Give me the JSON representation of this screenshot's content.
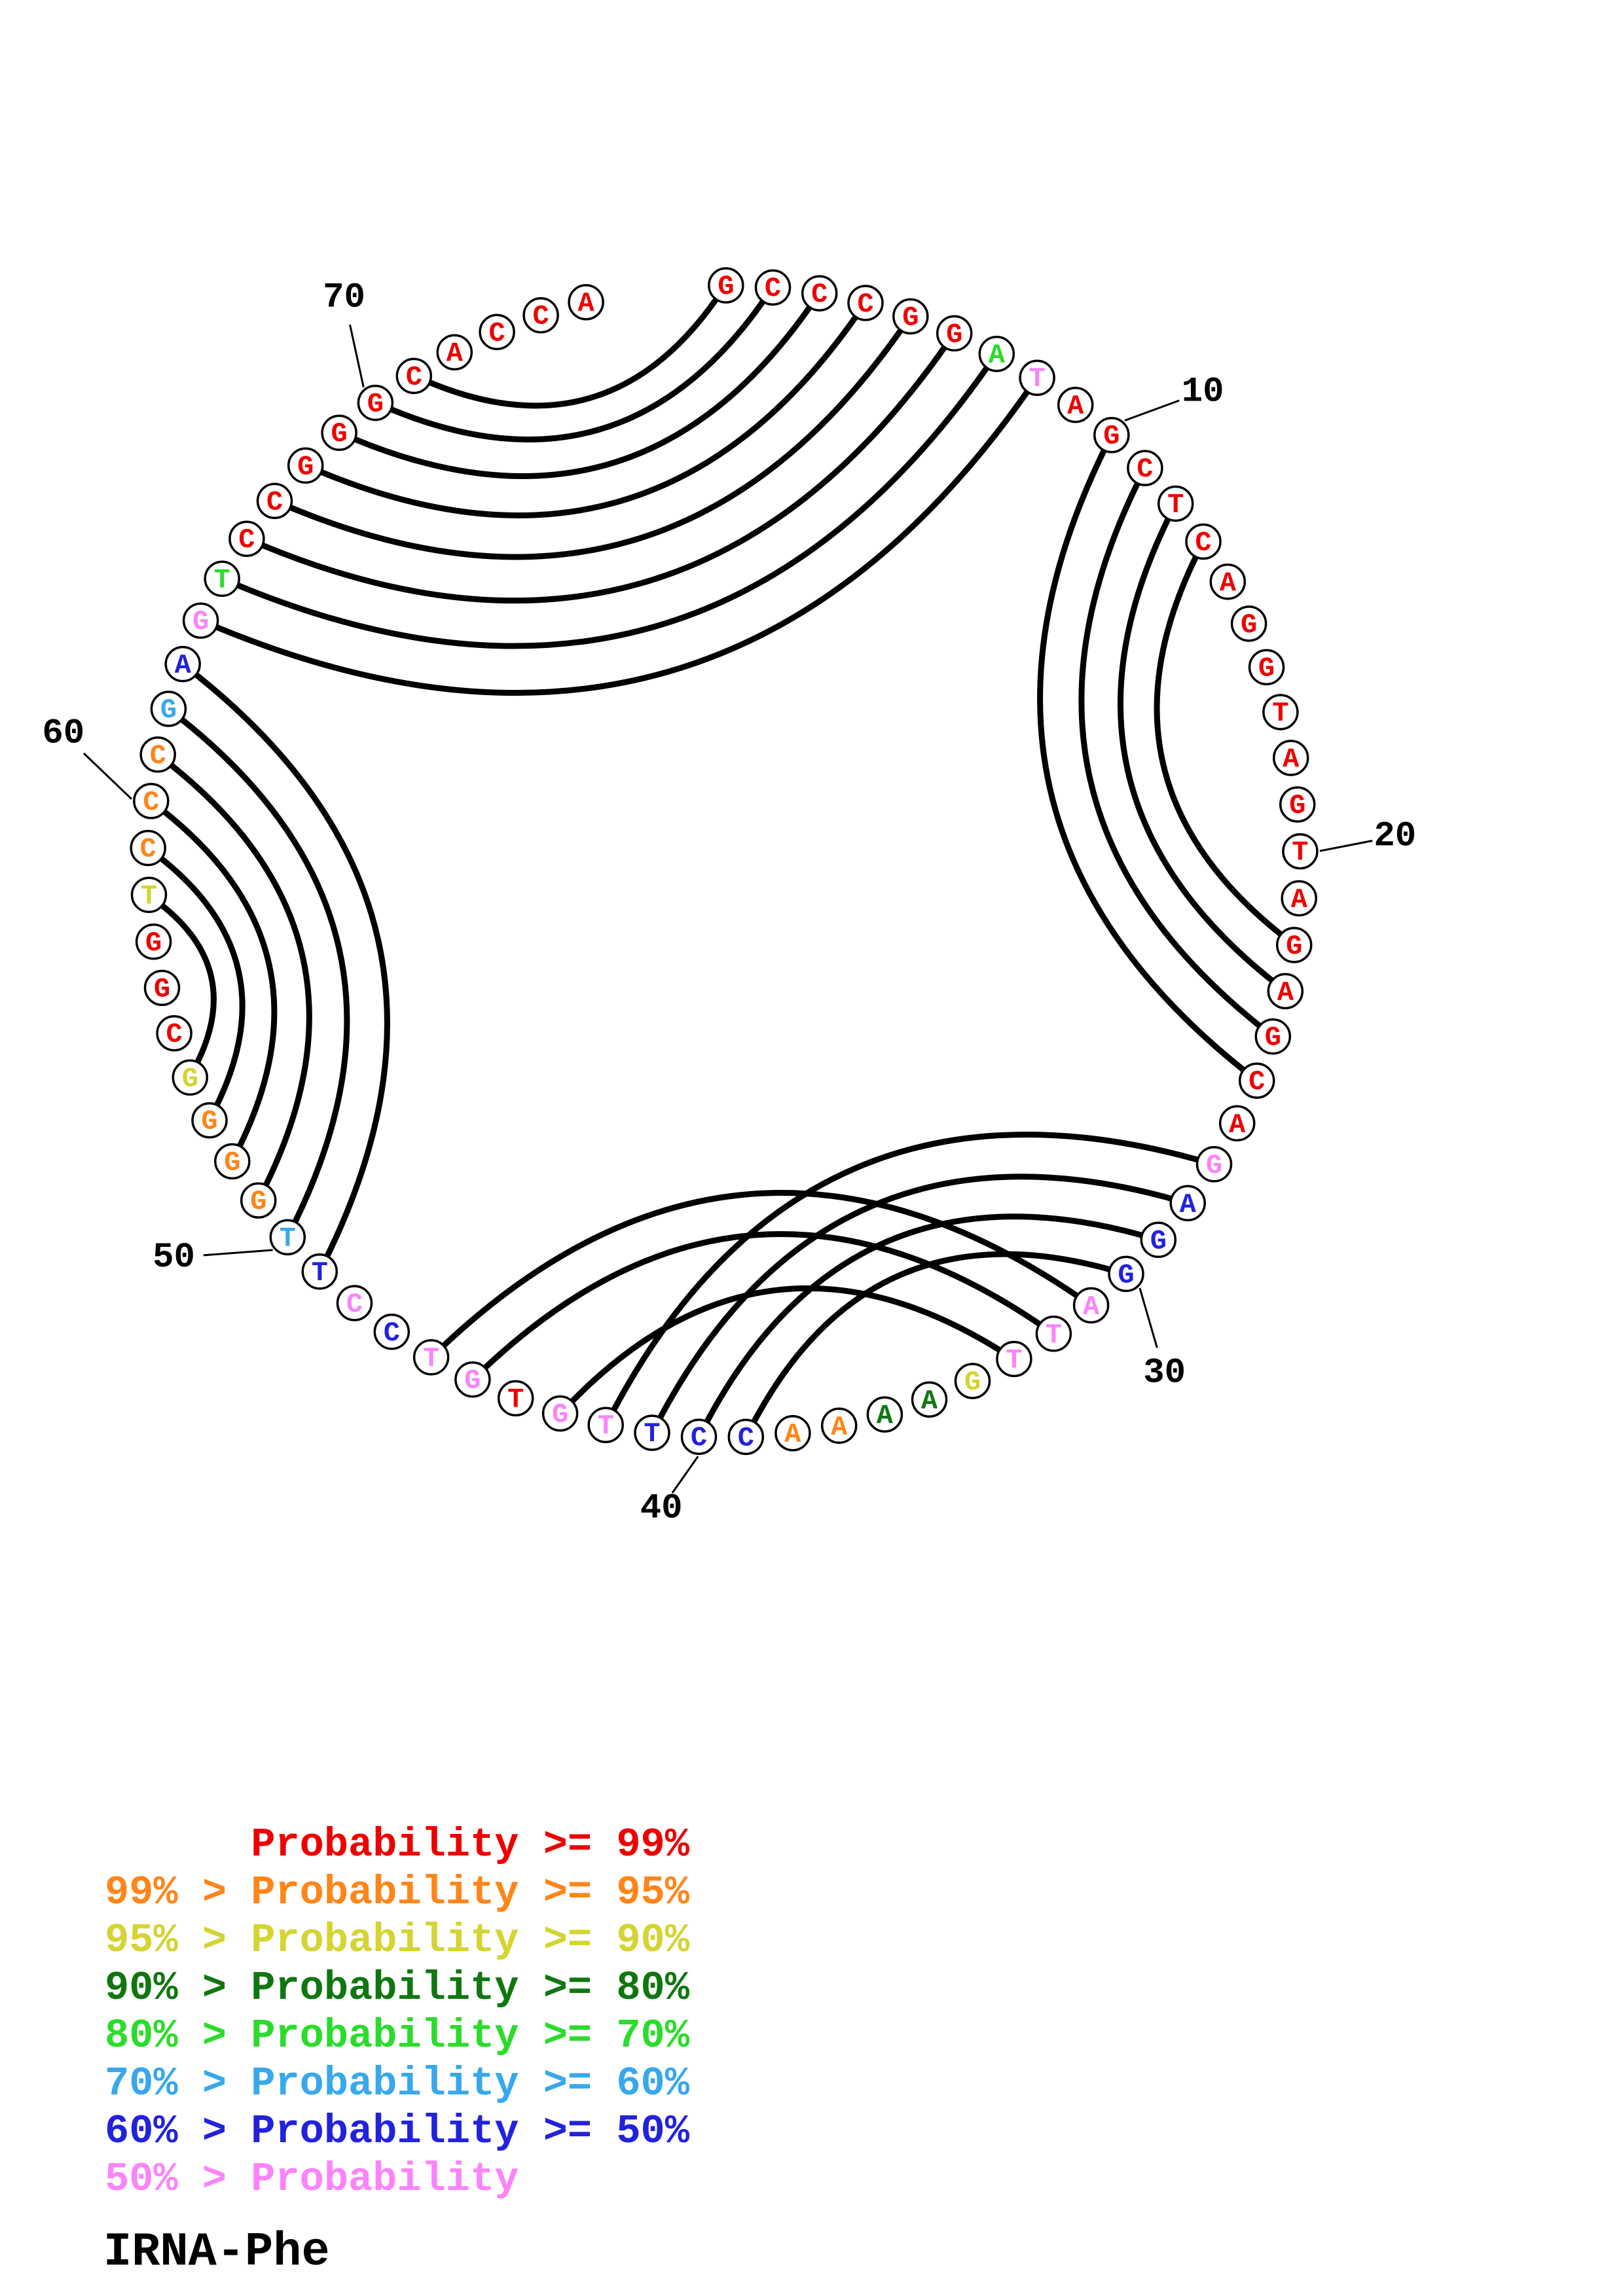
{
  "title": "IRNA-Phe",
  "palette": {
    "red": "#ee0000",
    "orange": "#ff8519",
    "yellow": "#d4d432",
    "darkgreen": "#107710",
    "green": "#2bdc2b",
    "lightblue": "#38a8ec",
    "blue": "#2222dd",
    "pink": "#fb84fb",
    "black": "#000000"
  },
  "chart_data": {
    "type": "arc-diagram",
    "title": "IRNA-Phe",
    "description": "Circle plot of base-pairing probabilities for a 75-nt tRNA-Phe sequence. Nucleotides are arranged clockwise on a circle starting at top; black arcs join paired bases; letter color encodes probability class per the legend.",
    "sequence_length": 75,
    "sequence": "GCCCGGATAGCTCAGGTAGTAGAGCAGAGGATTGAAAACCTTGTGTCCTTGGGGCGGTCCCGAGTCCGGGCACCA",
    "color_classes": [
      "r",
      "r",
      "r",
      "r",
      "r",
      "r",
      "g",
      "p",
      "r",
      "r",
      "r",
      "r",
      "r",
      "r",
      "r",
      "r",
      "r",
      "r",
      "r",
      "r",
      "r",
      "r",
      "r",
      "r",
      "r",
      "r",
      "p",
      "b",
      "b",
      "b",
      "p",
      "p",
      "p",
      "y",
      "dg",
      "dg",
      "o",
      "o",
      "b",
      "b",
      "b",
      "p",
      "p",
      "r",
      "p",
      "p",
      "b",
      "p",
      "b",
      "c",
      "o",
      "o",
      "o",
      "y",
      "r",
      "r",
      "r",
      "y",
      "o",
      "o",
      "o",
      "c",
      "b",
      "p",
      "g",
      "r",
      "r",
      "r",
      "r",
      "r",
      "r",
      "r",
      "r",
      "r",
      "r"
    ],
    "class_to_color": {
      "r": "red",
      "o": "orange",
      "y": "yellow",
      "dg": "darkgreen",
      "g": "green",
      "c": "lightblue",
      "b": "blue",
      "p": "pink"
    },
    "pairs": [
      [
        1,
        71
      ],
      [
        2,
        70
      ],
      [
        3,
        69
      ],
      [
        4,
        68
      ],
      [
        5,
        67
      ],
      [
        6,
        66
      ],
      [
        7,
        65
      ],
      [
        8,
        64
      ],
      [
        10,
        25
      ],
      [
        11,
        24
      ],
      [
        12,
        23
      ],
      [
        13,
        22
      ],
      [
        27,
        42
      ],
      [
        28,
        41
      ],
      [
        29,
        40
      ],
      [
        30,
        39
      ],
      [
        31,
        46
      ],
      [
        32,
        45
      ],
      [
        33,
        43
      ],
      [
        49,
        63
      ],
      [
        50,
        62
      ],
      [
        51,
        61
      ],
      [
        52,
        60
      ],
      [
        53,
        59
      ],
      [
        54,
        58
      ]
    ],
    "position_labels": [
      10,
      20,
      30,
      40,
      50,
      60,
      70
    ],
    "legend_position": "bottom-left",
    "legend": [
      {
        "text": "      Probability >= 99%",
        "color": "red"
      },
      {
        "text": "99% > Probability >= 95%",
        "color": "orange"
      },
      {
        "text": "95% > Probability >= 90%",
        "color": "yellow"
      },
      {
        "text": "90% > Probability >= 80%",
        "color": "darkgreen"
      },
      {
        "text": "80% > Probability >= 70%",
        "color": "green"
      },
      {
        "text": "70% > Probability >= 60%",
        "color": "lightblue"
      },
      {
        "text": "60% > Probability >= 50%",
        "color": "blue"
      },
      {
        "text": "50% > Probability",
        "color": "pink"
      }
    ]
  }
}
